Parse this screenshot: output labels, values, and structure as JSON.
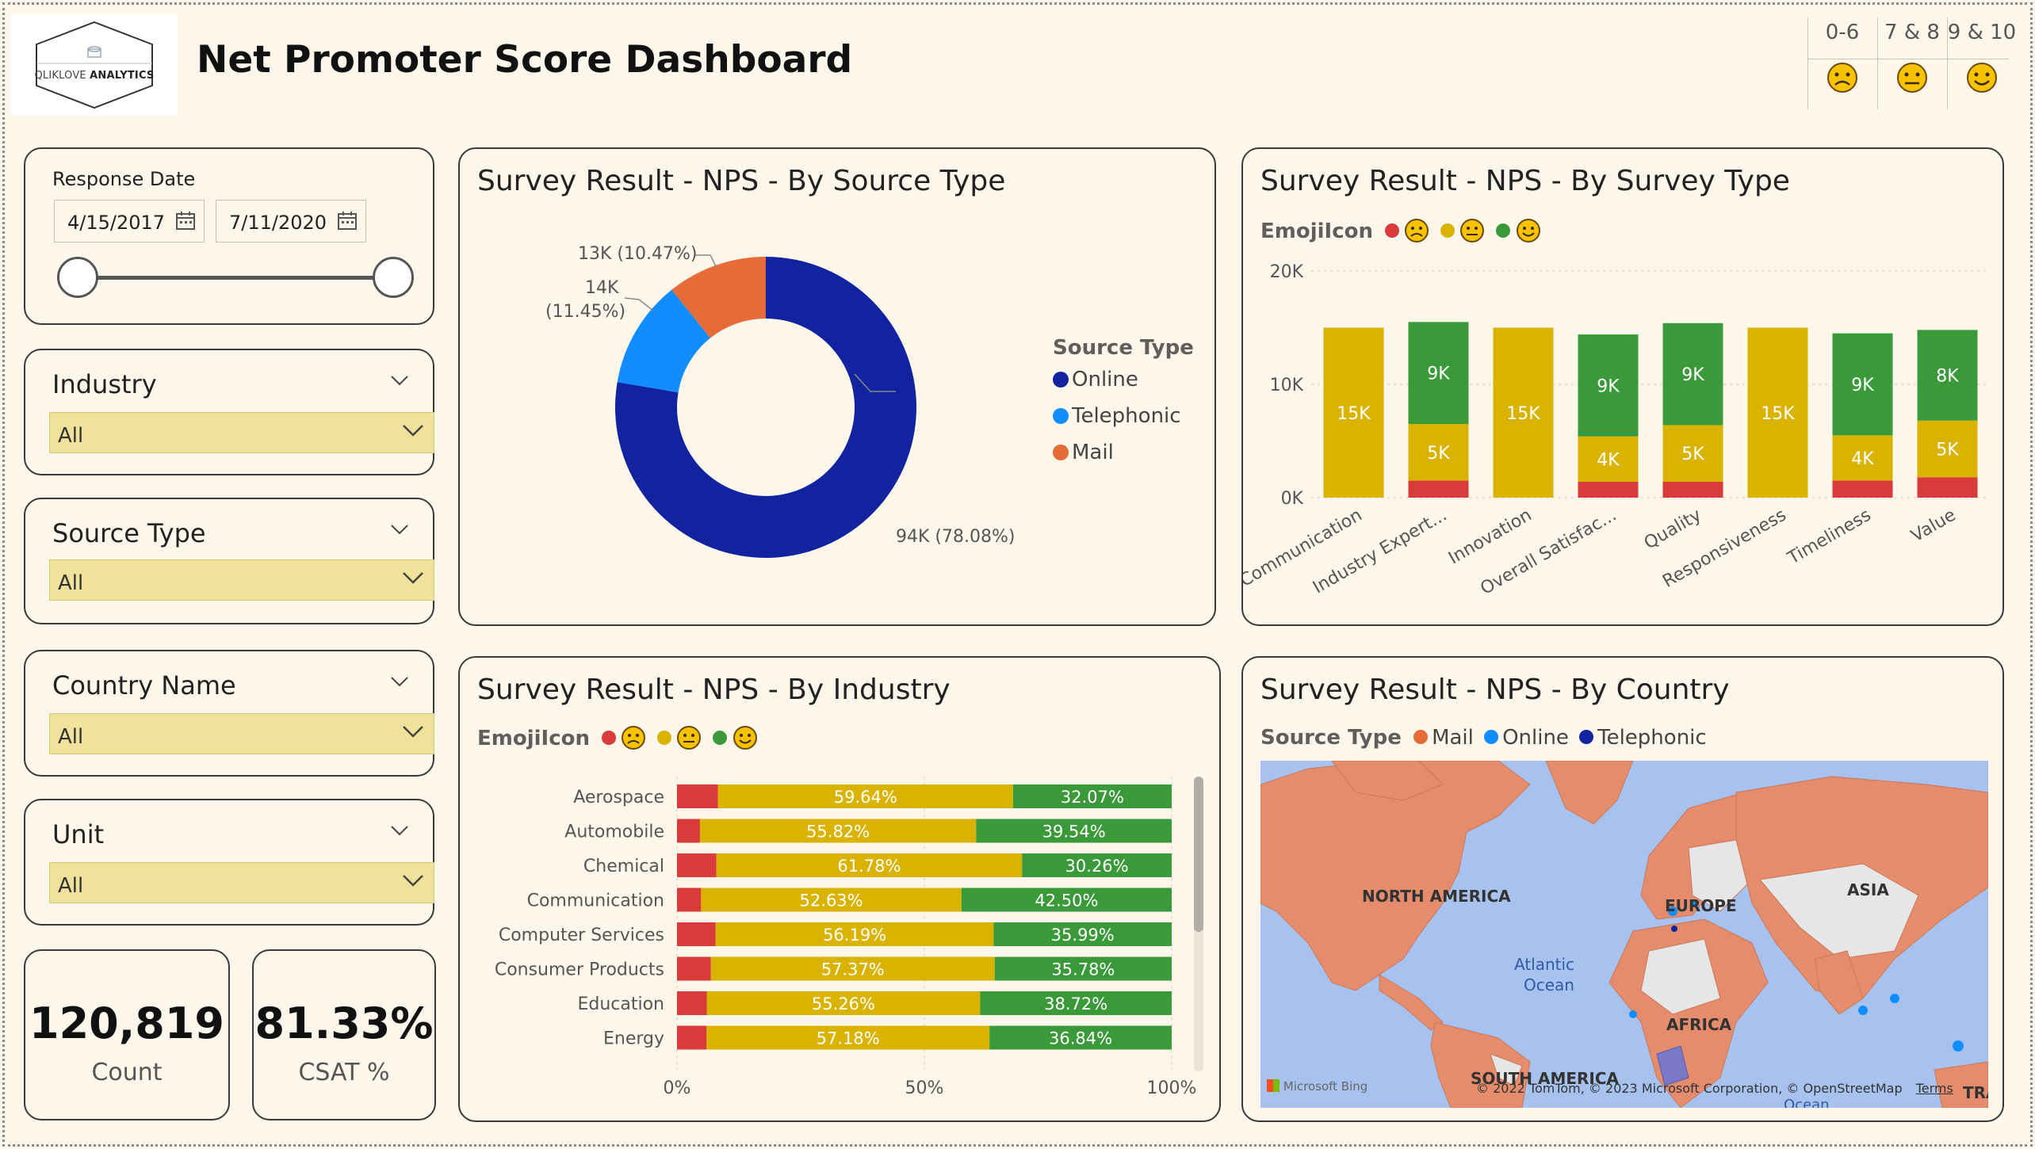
{
  "header": {
    "title": "Net Promoter Score Dashboard",
    "logo_text_light": "QLIKLOVE",
    "logo_text_bold": "ANALYTICS",
    "emoji_legend": [
      {
        "label": "0-6",
        "icon": "sad-face-icon"
      },
      {
        "label": "7 & 8",
        "icon": "neutral-face-icon"
      },
      {
        "label": "9 & 10",
        "icon": "happy-face-icon"
      }
    ]
  },
  "colors": {
    "detractor": "#d93a3a",
    "passive": "#d9b300",
    "promoter": "#3a9a3a",
    "online": "#11239f",
    "telephonic": "#118dff",
    "mail": "#e66c37"
  },
  "filters": {
    "response_date": {
      "label": "Response Date",
      "start": "4/15/2017",
      "end": "7/11/2020"
    },
    "industry": {
      "label": "Industry",
      "value": "All"
    },
    "source_type": {
      "label": "Source Type",
      "value": "All"
    },
    "country_name": {
      "label": "Country Name",
      "value": "All"
    },
    "unit": {
      "label": "Unit",
      "value": "All"
    }
  },
  "kpis": {
    "count": {
      "value": "120,819",
      "label": "Count"
    },
    "csat": {
      "value": "81.33%",
      "label": "CSAT %"
    }
  },
  "source_chart": {
    "title": "Survey Result - NPS - By Source Type",
    "legend_title": "Source Type",
    "legend": [
      "Online",
      "Telephonic",
      "Mail"
    ],
    "labels": {
      "online": "94K (78.08%)",
      "telephonic_a": "14K",
      "telephonic_b": "(11.45%)",
      "mail": "13K (10.47%)"
    }
  },
  "survey_chart": {
    "title": "Survey Result - NPS - By Survey Type",
    "legend_title": "EmojiIcon",
    "y_ticks": [
      "20K",
      "10K",
      "0K"
    ],
    "categories": [
      "Communication",
      "Industry Expert...",
      "Innovation",
      "Overall Satisfac...",
      "Quality",
      "Responsiveness",
      "Timeliness",
      "Value"
    ],
    "passive_labels": [
      "15K",
      "5K",
      "15K",
      "4K",
      "5K",
      "15K",
      "4K",
      "5K"
    ],
    "promoter_labels": [
      "",
      "9K",
      "",
      "9K",
      "9K",
      "",
      "9K",
      "8K"
    ]
  },
  "industry_chart": {
    "title": "Survey Result - NPS - By Industry",
    "legend_title": "EmojiIcon",
    "x_ticks": [
      "0%",
      "50%",
      "100%"
    ],
    "rows": [
      {
        "name": "Aerospace",
        "passive": "59.64%",
        "promoter": "32.07%"
      },
      {
        "name": "Automobile",
        "passive": "55.82%",
        "promoter": "39.54%"
      },
      {
        "name": "Chemical",
        "passive": "61.78%",
        "promoter": "30.26%"
      },
      {
        "name": "Communication",
        "passive": "52.63%",
        "promoter": "42.50%"
      },
      {
        "name": "Computer Services",
        "passive": "56.19%",
        "promoter": "35.99%"
      },
      {
        "name": "Consumer Products",
        "passive": "57.37%",
        "promoter": "35.78%"
      },
      {
        "name": "Education",
        "passive": "55.26%",
        "promoter": "38.72%"
      },
      {
        "name": "Energy",
        "passive": "57.18%",
        "promoter": "36.84%"
      }
    ]
  },
  "country_chart": {
    "title": "Survey Result - NPS - By Country",
    "legend_title": "Source Type",
    "legend": [
      "Mail",
      "Online",
      "Telephonic"
    ],
    "map_labels": {
      "north_america": "NORTH AMERICA",
      "europe": "EUROPE",
      "asia": "ASIA",
      "atlantic_a": "Atlantic",
      "atlantic_b": "Ocean",
      "africa": "AFRICA",
      "south_america": "SOUTH AMERICA",
      "australia_partial": "TRA",
      "ocean_partial": "Ocean"
    },
    "attribution": "© 2022 TomTom, © 2023 Microsoft Corporation, © OpenStreetMap",
    "terms": "Terms",
    "bing": "Microsoft Bing"
  },
  "chart_data": [
    {
      "type": "pie",
      "title": "Survey Result - NPS - By Source Type",
      "categories": [
        "Online",
        "Telephonic",
        "Mail"
      ],
      "values": [
        94,
        14,
        13
      ],
      "percentages": [
        78.08,
        11.45,
        10.47
      ]
    },
    {
      "type": "bar",
      "title": "Survey Result - NPS - By Survey Type",
      "categories": [
        "Communication",
        "Industry Expert...",
        "Innovation",
        "Overall Satisfac...",
        "Quality",
        "Responsiveness",
        "Timeliness",
        "Value"
      ],
      "ylim": [
        0,
        20
      ],
      "series": [
        {
          "name": "0-6",
          "values": [
            0,
            1.5,
            0,
            1.4,
            1.4,
            0,
            1.5,
            1.8
          ]
        },
        {
          "name": "7 & 8",
          "values": [
            15,
            5,
            15,
            4,
            5,
            15,
            4,
            5
          ]
        },
        {
          "name": "9 & 10",
          "values": [
            0,
            9,
            0,
            9,
            9,
            0,
            9,
            8
          ]
        }
      ]
    },
    {
      "type": "bar",
      "title": "Survey Result - NPS - By Industry",
      "categories": [
        "Aerospace",
        "Automobile",
        "Chemical",
        "Communication",
        "Computer Services",
        "Consumer Products",
        "Education",
        "Energy"
      ],
      "xlim": [
        0,
        100
      ],
      "series": [
        {
          "name": "0-6",
          "values": [
            8.29,
            4.64,
            7.96,
            4.87,
            7.82,
            6.85,
            6.02,
            5.98
          ]
        },
        {
          "name": "7 & 8",
          "values": [
            59.64,
            55.82,
            61.78,
            52.63,
            56.19,
            57.37,
            55.26,
            57.18
          ]
        },
        {
          "name": "9 & 10",
          "values": [
            32.07,
            39.54,
            30.26,
            42.5,
            35.99,
            35.78,
            38.72,
            36.84
          ]
        }
      ]
    }
  ]
}
